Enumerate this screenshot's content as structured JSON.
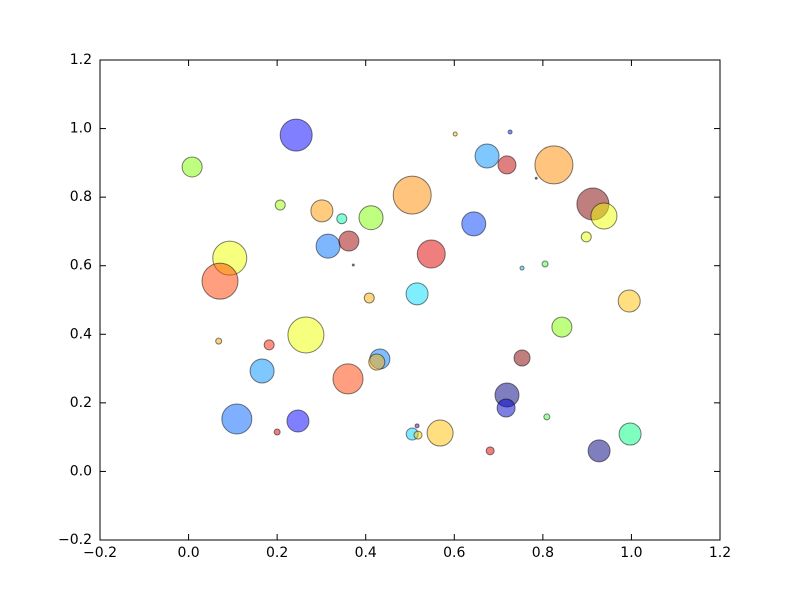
{
  "chart_data": {
    "type": "scatter",
    "x": [
      0.243,
      0.008,
      0.207,
      0.301,
      0.346,
      0.412,
      0.505,
      0.602,
      0.726,
      0.674,
      0.719,
      0.825,
      0.785,
      0.913,
      0.938,
      0.898,
      0.644,
      0.315,
      0.362,
      0.093,
      0.071,
      0.548,
      0.372,
      0.753,
      0.805,
      0.408,
      0.516,
      0.995,
      0.068,
      0.265,
      0.182,
      0.843,
      0.432,
      0.425,
      0.753,
      0.166,
      0.36,
      0.719,
      0.717,
      0.109,
      0.247,
      0.2,
      0.516,
      0.505,
      0.518,
      0.568,
      0.809,
      0.681,
      0.927,
      0.997
    ],
    "values": [
      0.981,
      0.888,
      0.777,
      0.76,
      0.737,
      0.74,
      0.806,
      0.984,
      0.99,
      0.92,
      0.894,
      0.894,
      0.855,
      0.78,
      0.745,
      0.684,
      0.722,
      0.657,
      0.672,
      0.622,
      0.555,
      0.634,
      0.602,
      0.593,
      0.605,
      0.506,
      0.518,
      0.497,
      0.38,
      0.398,
      0.369,
      0.421,
      0.328,
      0.319,
      0.331,
      0.293,
      0.27,
      0.223,
      0.185,
      0.153,
      0.147,
      0.115,
      0.133,
      0.109,
      0.106,
      0.112,
      0.159,
      0.06,
      0.06,
      0.109
    ],
    "sizes": [
      16,
      10,
      5,
      11,
      5,
      12,
      19,
      2,
      2,
      12,
      9,
      19,
      1,
      16,
      13,
      5,
      12,
      12,
      10,
      17,
      18,
      14,
      1,
      2,
      3,
      5,
      11,
      11,
      3,
      18,
      5,
      10,
      10,
      8,
      8,
      12,
      15,
      12,
      9,
      15,
      11,
      3,
      2,
      6,
      4,
      13,
      3,
      4,
      11,
      11
    ],
    "colors": [
      "#0000ff",
      "#80ff00",
      "#a0ff00",
      "#ff9900",
      "#00ffb0",
      "#80ff00",
      "#ff8c00",
      "#ffd000",
      "#0030ff",
      "#0090ff",
      "#c00000",
      "#ff8c00",
      "#400000",
      "#800000",
      "#f0ff00",
      "#e8ff00",
      "#0040ff",
      "#0070ff",
      "#a00000",
      "#f0ff00",
      "#ff4000",
      "#e00000",
      "#800000",
      "#00c0ff",
      "#40ff40",
      "#ffb000",
      "#00e0ff",
      "#ffc000",
      "#ffa000",
      "#f0ff00",
      "#ff2000",
      "#80ff00",
      "#0080ff",
      "#ffb000",
      "#800000",
      "#0090ff",
      "#ff4000",
      "#000080",
      "#0000c8",
      "#0060ff",
      "#0000ff",
      "#e00000",
      "#6000a0",
      "#00d0ff",
      "#ffd000",
      "#ffc000",
      "#40ff40",
      "#e00000",
      "#000080",
      "#00ff80"
    ],
    "xlim": [
      -0.2,
      1.2
    ],
    "ylim": [
      -0.2,
      1.2
    ],
    "xticks": [
      {
        "value": -0.2,
        "label": "−0.2"
      },
      {
        "value": 0,
        "label": "0.0"
      },
      0.2,
      0.4,
      0.6,
      0.8,
      {
        "value": 1,
        "label": "1.0"
      },
      1.2
    ],
    "yticks": [
      {
        "value": -0.2,
        "label": "−0.2"
      },
      {
        "value": 0,
        "label": "0.0"
      },
      0.2,
      0.4,
      0.6,
      0.8,
      {
        "value": 1,
        "label": "1.0"
      },
      1.2
    ],
    "alpha": 0.5
  }
}
